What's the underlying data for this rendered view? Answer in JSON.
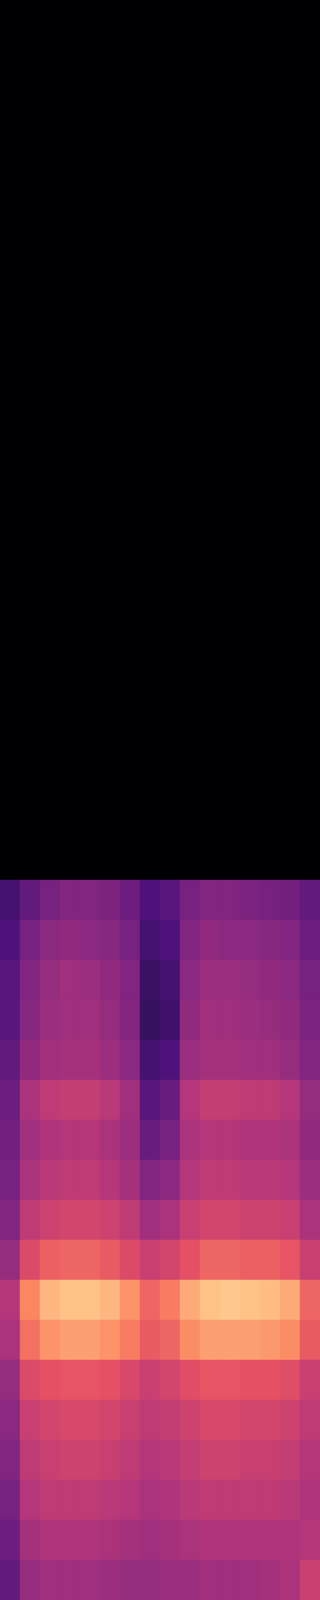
{
  "chart_data": {
    "type": "heatmap",
    "tick_labels": false,
    "zlim": [
      -80,
      0
    ],
    "z": [
      [
        -80,
        -80,
        -80,
        -80,
        -80,
        -80,
        -80,
        -80,
        -80,
        -80,
        -80,
        -80,
        -80,
        -80,
        -80,
        -80
      ],
      [
        -80,
        -80,
        -80,
        -80,
        -80,
        -80,
        -80,
        -80,
        -80,
        -80,
        -80,
        -80,
        -80,
        -80,
        -80,
        -80
      ],
      [
        -80,
        -80,
        -80,
        -80,
        -80,
        -80,
        -80,
        -80,
        -80,
        -80,
        -80,
        -80,
        -80,
        -80,
        -80,
        -80
      ],
      [
        -80,
        -80,
        -80,
        -80,
        -80,
        -80,
        -80,
        -80,
        -80,
        -80,
        -80,
        -80,
        -80,
        -80,
        -80,
        -80
      ],
      [
        -80,
        -80,
        -80,
        -80,
        -80,
        -80,
        -80,
        -80,
        -80,
        -80,
        -80,
        -80,
        -80,
        -80,
        -80,
        -80
      ],
      [
        -80,
        -80,
        -80,
        -80,
        -80,
        -80,
        -80,
        -80,
        -80,
        -80,
        -80,
        -80,
        -80,
        -80,
        -80,
        -80
      ],
      [
        -80,
        -80,
        -80,
        -80,
        -80,
        -80,
        -80,
        -80,
        -80,
        -80,
        -80,
        -80,
        -80,
        -80,
        -80,
        -80
      ],
      [
        -80,
        -80,
        -80,
        -80,
        -80,
        -80,
        -80,
        -80,
        -80,
        -80,
        -80,
        -80,
        -80,
        -80,
        -80,
        -80
      ],
      [
        -80,
        -80,
        -80,
        -80,
        -80,
        -80,
        -80,
        -80,
        -80,
        -80,
        -80,
        -80,
        -80,
        -80,
        -80,
        -80
      ],
      [
        -80,
        -80,
        -80,
        -80,
        -80,
        -80,
        -80,
        -80,
        -80,
        -80,
        -80,
        -80,
        -80,
        -80,
        -80,
        -80
      ],
      [
        -80,
        -80,
        -80,
        -80,
        -80,
        -80,
        -80,
        -80,
        -80,
        -80,
        -80,
        -80,
        -80,
        -80,
        -80,
        -80
      ],
      [
        -80,
        -80,
        -80,
        -80,
        -80,
        -80,
        -80,
        -80,
        -80,
        -80,
        -80,
        -80,
        -80,
        -80,
        -80,
        -80
      ],
      [
        -80,
        -80,
        -80,
        -80,
        -80,
        -80,
        -80,
        -80,
        -80,
        -80,
        -80,
        -80,
        -80,
        -80,
        -80,
        -80
      ],
      [
        -80,
        -80,
        -80,
        -80,
        -80,
        -80,
        -80,
        -80,
        -80,
        -80,
        -80,
        -80,
        -80,
        -80,
        -80,
        -80
      ],
      [
        -80,
        -80,
        -80,
        -80,
        -80,
        -80,
        -80,
        -80,
        -80,
        -80,
        -80,
        -80,
        -80,
        -80,
        -80,
        -80
      ],
      [
        -80,
        -80,
        -80,
        -80,
        -80,
        -80,
        -80,
        -80,
        -80,
        -80,
        -80,
        -80,
        -80,
        -80,
        -80,
        -80
      ],
      [
        -80,
        -80,
        -80,
        -80,
        -80,
        -80,
        -80,
        -80,
        -80,
        -80,
        -80,
        -80,
        -80,
        -80,
        -80,
        -80
      ],
      [
        -80,
        -80,
        -80,
        -80,
        -80,
        -80,
        -80,
        -80,
        -80,
        -80,
        -80,
        -80,
        -80,
        -80,
        -80,
        -80
      ],
      [
        -80,
        -80,
        -80,
        -80,
        -80,
        -80,
        -80,
        -80,
        -80,
        -80,
        -80,
        -80,
        -80,
        -80,
        -80,
        -80
      ],
      [
        -80,
        -80,
        -80,
        -80,
        -80,
        -80,
        -80,
        -80,
        -80,
        -80,
        -80,
        -80,
        -80,
        -80,
        -80,
        -80
      ],
      [
        -80,
        -80,
        -80,
        -80,
        -80,
        -80,
        -80,
        -80,
        -80,
        -80,
        -80,
        -80,
        -80,
        -80,
        -80,
        -80
      ],
      [
        -80,
        -80,
        -80,
        -80,
        -80,
        -80,
        -80,
        -80,
        -80,
        -80,
        -80,
        -80,
        -80,
        -80,
        -80,
        -80
      ],
      [
        -62,
        -56,
        -52,
        -50,
        -50,
        -51,
        -54,
        -60,
        -58,
        -52,
        -50,
        -50,
        -51,
        -52,
        -53,
        -56
      ],
      [
        -60,
        -52,
        -48,
        -47,
        -48,
        -49,
        -52,
        -62,
        -60,
        -50,
        -47,
        -48,
        -48,
        -49,
        -50,
        -54
      ],
      [
        -58,
        -50,
        -46,
        -44,
        -45,
        -47,
        -50,
        -64,
        -62,
        -48,
        -45,
        -45,
        -46,
        -47,
        -48,
        -52
      ],
      [
        -58,
        -49,
        -45,
        -44,
        -44,
        -46,
        -50,
        -65,
        -63,
        -47,
        -44,
        -44,
        -45,
        -46,
        -47,
        -51
      ],
      [
        -56,
        -47,
        -44,
        -43,
        -43,
        -45,
        -48,
        -62,
        -60,
        -45,
        -43,
        -43,
        -44,
        -44,
        -46,
        -50
      ],
      [
        -54,
        -42,
        -38,
        -37,
        -37,
        -39,
        -44,
        -58,
        -55,
        -40,
        -37,
        -37,
        -38,
        -38,
        -40,
        -46
      ],
      [
        -53,
        -44,
        -41,
        -40,
        -40,
        -42,
        -45,
        -55,
        -52,
        -42,
        -40,
        -40,
        -41,
        -41,
        -42,
        -47
      ],
      [
        -52,
        -42,
        -39,
        -38,
        -38,
        -40,
        -43,
        -50,
        -48,
        -40,
        -38,
        -38,
        -39,
        -39,
        -40,
        -45
      ],
      [
        -50,
        -38,
        -35,
        -34,
        -34,
        -35,
        -38,
        -44,
        -42,
        -36,
        -34,
        -34,
        -35,
        -35,
        -36,
        -42
      ],
      [
        -46,
        -32,
        -27,
        -26,
        -26,
        -28,
        -32,
        -36,
        -34,
        -30,
        -26,
        -26,
        -27,
        -27,
        -29,
        -36
      ],
      [
        -40,
        -20,
        -12,
        -10,
        -10,
        -12,
        -18,
        -26,
        -22,
        -14,
        -10,
        -9,
        -10,
        -11,
        -14,
        -26
      ],
      [
        -42,
        -24,
        -18,
        -16,
        -16,
        -18,
        -22,
        -28,
        -26,
        -19,
        -16,
        -16,
        -16,
        -17,
        -19,
        -28
      ],
      [
        -46,
        -32,
        -30,
        -29,
        -29,
        -30,
        -33,
        -36,
        -34,
        -31,
        -29,
        -29,
        -30,
        -30,
        -31,
        -36
      ],
      [
        -48,
        -36,
        -34,
        -33,
        -33,
        -34,
        -36,
        -38,
        -37,
        -35,
        -33,
        -33,
        -34,
        -34,
        -35,
        -38
      ],
      [
        -50,
        -38,
        -36,
        -35,
        -35,
        -36,
        -38,
        -40,
        -39,
        -37,
        -35,
        -35,
        -36,
        -36,
        -37,
        -40
      ],
      [
        -52,
        -40,
        -38,
        -38,
        -38,
        -39,
        -40,
        -42,
        -41,
        -39,
        -38,
        -38,
        -38,
        -38,
        -39,
        -41
      ],
      [
        -54,
        -43,
        -41,
        -41,
        -41,
        -42,
        -43,
        -44,
        -43,
        -42,
        -41,
        -41,
        -41,
        -41,
        -41,
        -40
      ],
      [
        -56,
        -46,
        -44,
        -44,
        -44,
        -45,
        -46,
        -46,
        -45,
        -45,
        -44,
        -44,
        -44,
        -43,
        -42,
        -36
      ]
    ]
  }
}
